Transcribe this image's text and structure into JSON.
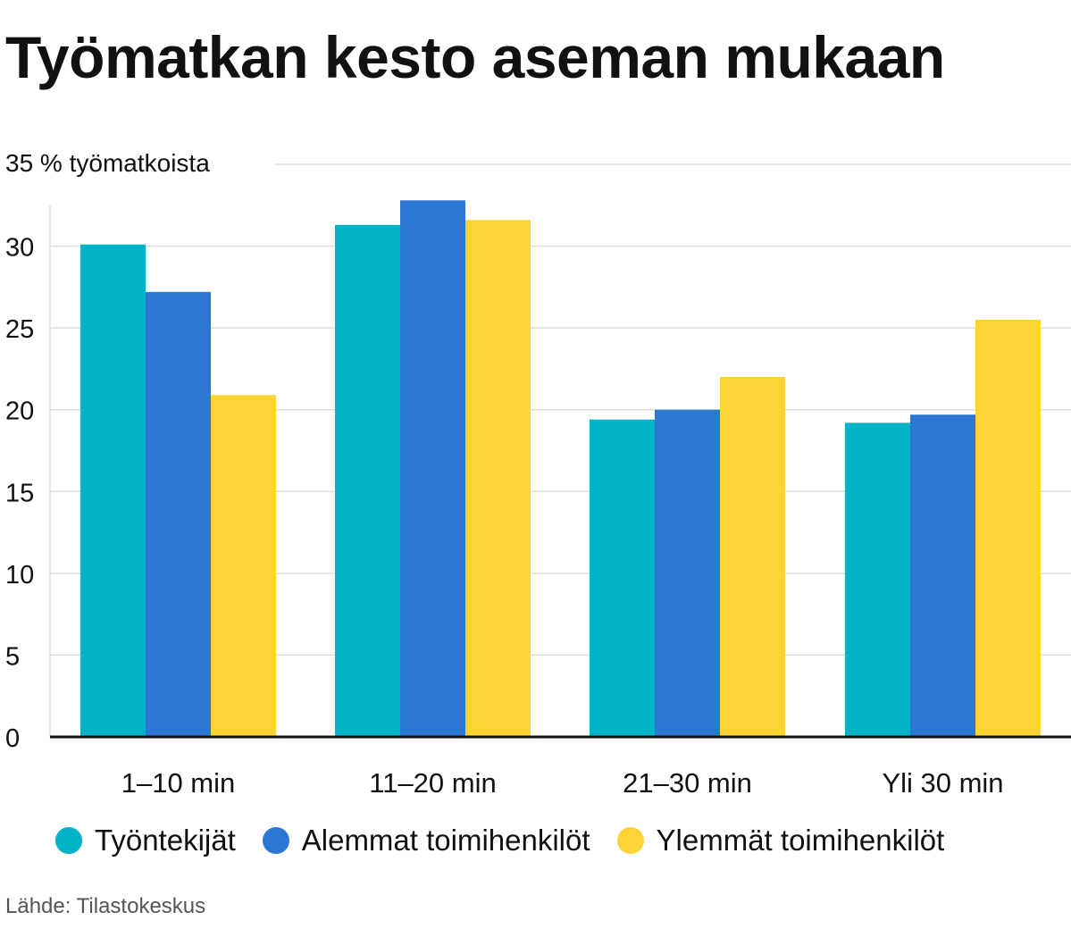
{
  "title": "Työmatkan kesto aseman mukaan",
  "source": "Lähde: Tilastokeskus",
  "colors": {
    "Työntekijät": "#00b3c8",
    "Alemmat toimihenkilöt": "#2b77d3",
    "Ylemmät toimihenkilöt": "#fdd335",
    "grid": "#dddddd",
    "axis": "#111111"
  },
  "chart_data": {
    "type": "bar",
    "title": "Työmatkan kesto aseman mukaan",
    "ylabel": "35 % työmatkoista",
    "xlabel": "",
    "ylim": [
      0,
      35
    ],
    "yticks": [
      "0",
      "5",
      "10",
      "15",
      "20",
      "25",
      "30"
    ],
    "categories": [
      "1–10 min",
      "11–20 min",
      "21–30 min",
      "Yli 30 min"
    ],
    "series": [
      {
        "name": "Työntekijät",
        "values": [
          30.1,
          31.3,
          19.4,
          19.2
        ]
      },
      {
        "name": "Alemmat toimihenkilöt",
        "values": [
          27.2,
          32.8,
          20.0,
          19.7
        ]
      },
      {
        "name": "Ylemmät toimihenkilöt",
        "values": [
          20.9,
          31.6,
          22.0,
          25.5
        ]
      }
    ],
    "grid": true,
    "legend": "bottom"
  }
}
